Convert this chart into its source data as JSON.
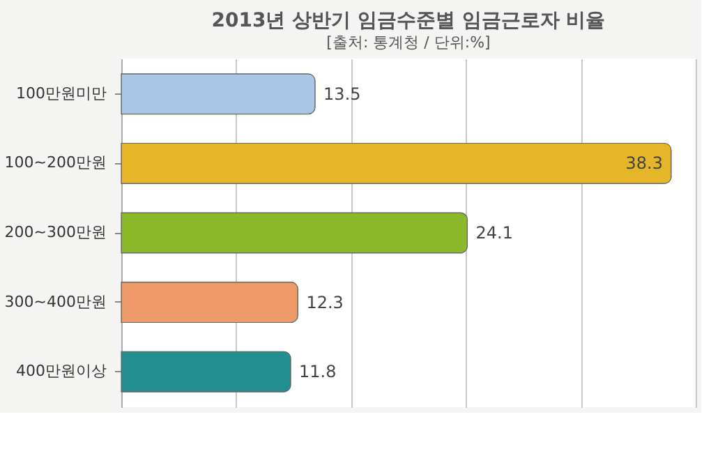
{
  "chart_data": {
    "type": "bar",
    "orientation": "horizontal",
    "title": "2013년 상반기 임금수준별 임금근로자 비율",
    "subtitle": "[출처: 통계청 / 단위:%]",
    "categories": [
      "100만원미만",
      "100~200만원",
      "200~300만원",
      "300~400만원",
      "400만원이상"
    ],
    "values": [
      13.5,
      38.3,
      24.1,
      12.3,
      11.8
    ],
    "colors": [
      "#a9c6e4",
      "#e6b62a",
      "#8cb92c",
      "#ee9a68",
      "#238e90"
    ],
    "xlim": [
      0,
      40
    ],
    "xticks": [
      {
        "value": 8,
        "label": null
      },
      {
        "value": 16,
        "label": null
      },
      {
        "value": 24,
        "label": null
      },
      {
        "value": 32,
        "label": null
      },
      {
        "value": 40,
        "label": null
      }
    ],
    "grid": "x",
    "tick_labels": "y",
    "data_labels": true
  }
}
